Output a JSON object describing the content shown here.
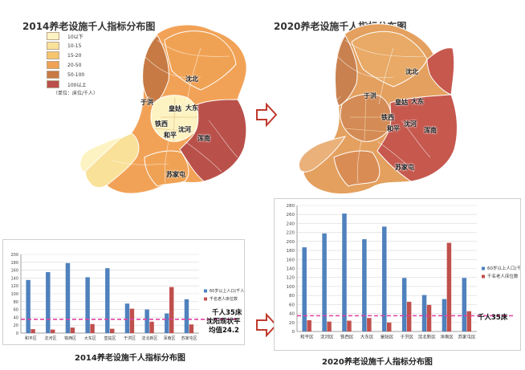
{
  "map_left": {
    "title": "2014养老设施千人指标分布图",
    "legend": {
      "items": [
        {
          "label": "10以下",
          "color": "#fdf3c2"
        },
        {
          "label": "10-15",
          "color": "#f9e19a"
        },
        {
          "label": "15-20",
          "color": "#f7c56e"
        },
        {
          "label": "20-50",
          "color": "#f0a254"
        },
        {
          "label": "50-100",
          "color": "#c77a43"
        },
        {
          "label": "100以上",
          "color": "#b9504a"
        }
      ],
      "unit_note": "（单位：床位/千人）"
    },
    "districts": [
      "沈北",
      "于洪",
      "皇姑",
      "大东",
      "铁西",
      "沈河",
      "和平",
      "浑南",
      "苏家屯"
    ]
  },
  "map_right": {
    "title": "2020养老设施千人指标分布图",
    "districts": [
      "沈北",
      "于洪",
      "皇姑",
      "大东",
      "铁西",
      "沈河",
      "和平",
      "浑南",
      "苏家屯"
    ]
  },
  "chart_data": [
    {
      "type": "bar",
      "caption": "2014养老设施千人指标分布图",
      "categories": [
        "和平区",
        "沈河区",
        "铁西区",
        "大东区",
        "皇姑区",
        "于洪区",
        "沈北新区",
        "浑南区",
        "苏家屯区"
      ],
      "series": [
        {
          "name": "60岁以上人口(千人)",
          "color": "#4f81bd",
          "values": [
            135,
            155,
            178,
            142,
            165,
            75,
            60,
            50,
            86
          ]
        },
        {
          "name": "千名老人床位数",
          "color": "#c0504d",
          "values": [
            10,
            9,
            14,
            23,
            11,
            62,
            29,
            117,
            22
          ]
        }
      ],
      "ylim": [
        0,
        200
      ],
      "yticks": [
        0,
        20,
        40,
        60,
        80,
        100,
        120,
        140,
        160,
        180,
        200
      ],
      "reference_line": 35,
      "annotations": [
        "千人35床",
        "沈阳现状平",
        "均值24.2"
      ]
    },
    {
      "type": "bar",
      "caption": "2020养老设施千人指标分布图",
      "categories": [
        "和平区",
        "沈河区",
        "铁西区",
        "大东区",
        "皇姑区",
        "于洪区",
        "沈北新区",
        "浑南区",
        "苏家屯区"
      ],
      "series": [
        {
          "name": "60岁以上人口(千人)",
          "color": "#4f81bd",
          "values": [
            187,
            218,
            262,
            205,
            233,
            119,
            81,
            72,
            119
          ]
        },
        {
          "name": "千名老人床位数",
          "color": "#c0504d",
          "values": [
            25,
            22,
            24,
            30,
            20,
            66,
            59,
            197,
            45
          ]
        }
      ],
      "ylim": [
        0,
        280
      ],
      "yticks": [
        0,
        20,
        40,
        60,
        80,
        100,
        120,
        140,
        160,
        180,
        200,
        220,
        240,
        260,
        280
      ],
      "reference_line": 35,
      "annotations": [
        "千人35床"
      ]
    }
  ]
}
